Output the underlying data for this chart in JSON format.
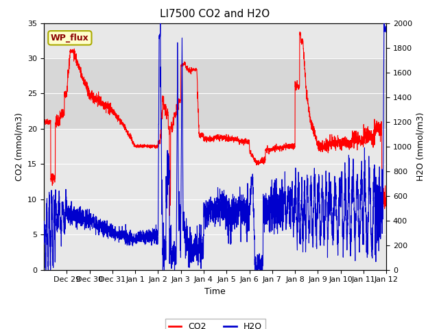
{
  "title": "LI7500 CO2 and H2O",
  "xlabel": "Time",
  "ylabel_left": "CO2 (mmol/m3)",
  "ylabel_right": "H2O (mmol/m3)",
  "ylim_left": [
    0,
    35
  ],
  "ylim_right": [
    0,
    2000
  ],
  "yticks_left": [
    0,
    5,
    10,
    15,
    20,
    25,
    30,
    35
  ],
  "yticks_right": [
    0,
    200,
    400,
    600,
    800,
    1000,
    1200,
    1400,
    1600,
    1800,
    2000
  ],
  "xtick_labels": [
    "Dec 29",
    "Dec 30",
    "Dec 31",
    "Jan 1",
    "Jan 2",
    "Jan 3",
    "Jan 4",
    "Jan 5",
    "Jan 6",
    "Jan 7",
    "Jan 8",
    "Jan 9",
    "Jan 10",
    "Jan 11",
    "Jan 12"
  ],
  "annotation_text": "WP_flux",
  "annotation_color": "#8B0000",
  "annotation_bg": "#FFFFCC",
  "annotation_border": "#AAAA00",
  "co2_color": "#FF0000",
  "h2o_color": "#0000CD",
  "background_color": "#FFFFFF",
  "plot_bg_color": "#E8E8E8",
  "grid_color": "#FFFFFF",
  "shaded_low": 20,
  "shaded_high": 30,
  "shaded_color": "#D0D0D0",
  "title_fontsize": 11,
  "tick_fontsize": 8,
  "label_fontsize": 9
}
